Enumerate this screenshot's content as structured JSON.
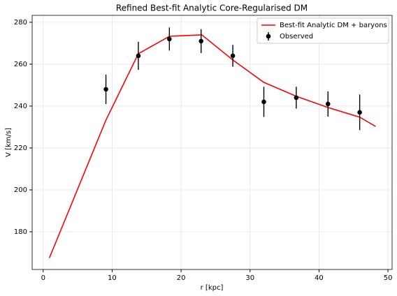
{
  "chart_data": {
    "type": "line+errorbar",
    "title": "Refined Best-fit Analytic Core-Regularised DM",
    "x_label": "r [kpc]",
    "y_label": "V [km/s]",
    "xlim": [
      -1.6,
      50.6
    ],
    "ylim": [
      162,
      283.3
    ],
    "xticks": [
      0,
      10,
      20,
      30,
      40,
      50
    ],
    "yticks": [
      180,
      200,
      220,
      240,
      260,
      280
    ],
    "grid": true,
    "legend": "upper right",
    "series": [
      {
        "name": "Best-fit Analytic DM + baryons",
        "kind": "line",
        "color": "#ff0000",
        "x": [
          0.9,
          9.1,
          13.8,
          18.3,
          23.0,
          27.5,
          32.0,
          36.7,
          41.3,
          45.9,
          48.2
        ],
        "values": [
          167.5,
          233.3,
          265,
          273.3,
          274,
          262,
          251.3,
          244.7,
          239.3,
          234.7,
          230.3
        ]
      },
      {
        "name": "Observed",
        "kind": "errorbar",
        "color": "#000000",
        "x": [
          9.1,
          13.8,
          18.3,
          22.9,
          27.5,
          32.0,
          36.7,
          41.3,
          45.9
        ],
        "values": [
          248,
          264,
          272,
          271,
          264,
          242,
          244,
          241,
          237
        ],
        "errors": [
          7,
          6.7,
          5.5,
          5.7,
          5.2,
          7.2,
          5.2,
          6,
          8.5
        ]
      }
    ]
  }
}
